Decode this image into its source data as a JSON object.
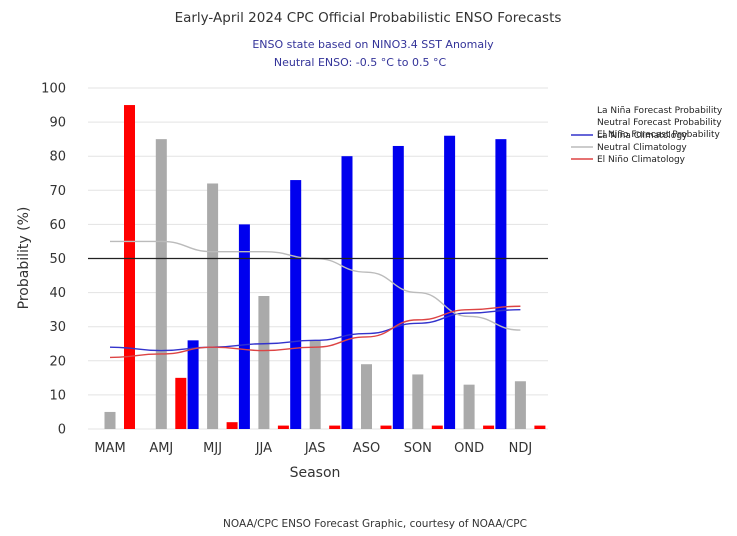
{
  "chart_data": {
    "type": "bar",
    "title": "Early-April 2024 CPC Official Probabilistic ENSO Forecasts",
    "subtitle_lines": [
      "ENSO state based on NINO3.4 SST Anomaly",
      "Neutral ENSO: -0.5 °C to 0.5 °C"
    ],
    "xlabel": "Season",
    "ylabel": "Probability (%)",
    "ylim": [
      0,
      100
    ],
    "yticks": [
      0,
      10,
      20,
      30,
      40,
      50,
      60,
      70,
      80,
      90,
      100
    ],
    "reference_line": 50,
    "categories": [
      "MAM",
      "AMJ",
      "MJJ",
      "JJA",
      "JAS",
      "ASO",
      "SON",
      "OND",
      "NDJ"
    ],
    "series": [
      {
        "name": "La Niña Forecast Probability",
        "kind": "bar",
        "color": "#0000ee",
        "values": [
          0,
          0,
          26,
          60,
          73,
          80,
          83,
          86,
          85
        ]
      },
      {
        "name": "Neutral Forecast Probability",
        "kind": "bar",
        "color": "#aaaaaa",
        "values": [
          5,
          85,
          72,
          39,
          26,
          19,
          16,
          13,
          14
        ]
      },
      {
        "name": "El Niño Forecast Probability",
        "kind": "bar",
        "color": "#ff0000",
        "values": [
          95,
          15,
          2,
          1,
          1,
          1,
          1,
          1,
          1
        ]
      },
      {
        "name": "La Niña Climatology",
        "kind": "line",
        "color": "#3333cc",
        "values": [
          24,
          23,
          24,
          25,
          26,
          28,
          31,
          34,
          35
        ]
      },
      {
        "name": "Neutral Climatology",
        "kind": "line",
        "color": "#bbbbbb",
        "values": [
          55,
          55,
          52,
          52,
          50,
          46,
          40,
          33,
          29
        ]
      },
      {
        "name": "El Niño Climatology",
        "kind": "line",
        "color": "#dd4444",
        "values": [
          21,
          22,
          24,
          23,
          24,
          27,
          32,
          35,
          36
        ]
      }
    ],
    "legend_position": "right",
    "grid": true
  },
  "credit": "NOAA/CPC ENSO Forecast Graphic, courtesy of NOAA/CPC"
}
